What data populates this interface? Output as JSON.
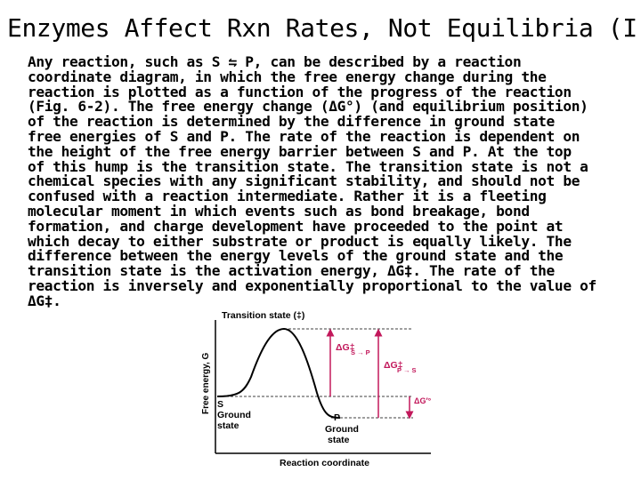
{
  "slide": {
    "title": "Enzymes Affect Rxn Rates, Not Equilibria (I)",
    "body_lines": [
      "Any reaction, such as S ⇋ P, can be described by a reaction",
      "coordinate diagram, in which the free energy change during the",
      "reaction is plotted as a function of the progress of the reaction",
      "(Fig. 6-2). The free energy change (ΔG°) (and equilibrium position)",
      "of the reaction is determined by the difference in ground state",
      "free energies of S and P. The rate of the reaction is dependent on",
      "the height of the free energy barrier between S and P. At the top",
      "of this hump is the transition state. The transition state is not a",
      "chemical species with any significant stability, and should not be",
      "confused with a reaction intermediate. Rather it is a fleeting",
      "molecular moment in which events such as bond breakage, bond",
      "formation, and charge development have proceeded to the point at",
      "which decay to either substrate or product is equally likely. The",
      "difference between the energy levels of the ground state and the",
      "transition state is the activation energy, ΔG‡. The rate of the",
      "reaction is inversely and exponentially proportional to the value of",
      "ΔG‡."
    ]
  },
  "figure": {
    "transition_state_label": "Transition state (‡)",
    "y_axis_label": "Free energy, G",
    "x_axis_label": "Reaction coordinate",
    "substrate_label": "S",
    "substrate_ground_state_line1": "Ground",
    "substrate_ground_state_line2": "state",
    "product_label": "P",
    "product_ground_state_line1": "Ground",
    "product_ground_state_line2": "state",
    "dg_s_to_p": "ΔG‡",
    "dg_s_to_p_sub": "S → P",
    "dg_p_to_s": "ΔG‡",
    "dg_p_to_s_sub": "P → S",
    "dg_standard": "ΔG′°",
    "accent_color": "#c2185b",
    "curve_color": "#000000"
  }
}
